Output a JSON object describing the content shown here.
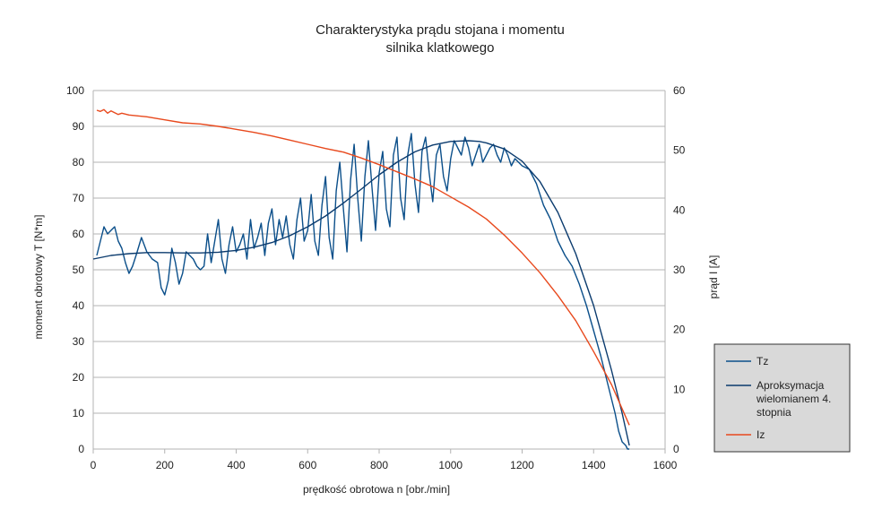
{
  "chart_data": {
    "type": "line",
    "title": "Charakterystyka prądu stojana i momentu",
    "subtitle": "silnika klatkowego",
    "xlabel": "prędkość obrotowa n [obr./min]",
    "ylabel": "moment obrotowy T [N*m]",
    "y2label": "prąd I [A]",
    "xlim": [
      0,
      1600
    ],
    "ylim": [
      0,
      100
    ],
    "y2lim": [
      0,
      60
    ],
    "x_ticks": [
      0,
      200,
      400,
      600,
      800,
      1000,
      1200,
      1400,
      1600
    ],
    "y_ticks": [
      0,
      10,
      20,
      30,
      40,
      50,
      60,
      70,
      80,
      90,
      100
    ],
    "y2_ticks": [
      0,
      10,
      20,
      30,
      40,
      50,
      60
    ],
    "grid": true,
    "legend_position": "right",
    "series": [
      {
        "name": "Tz",
        "axis": "left",
        "color": "#0b4f8a",
        "x": [
          10,
          20,
          30,
          40,
          50,
          60,
          70,
          80,
          90,
          100,
          110,
          120,
          135,
          150,
          165,
          180,
          190,
          200,
          210,
          220,
          230,
          240,
          250,
          260,
          270,
          280,
          290,
          300,
          310,
          320,
          330,
          340,
          350,
          360,
          370,
          380,
          390,
          400,
          410,
          420,
          430,
          440,
          450,
          460,
          470,
          480,
          490,
          500,
          510,
          520,
          530,
          540,
          550,
          560,
          570,
          580,
          590,
          600,
          610,
          620,
          630,
          640,
          650,
          660,
          670,
          680,
          690,
          700,
          710,
          720,
          730,
          740,
          750,
          760,
          770,
          780,
          790,
          800,
          810,
          820,
          830,
          840,
          850,
          860,
          870,
          880,
          890,
          900,
          910,
          920,
          930,
          940,
          950,
          960,
          970,
          980,
          990,
          1000,
          1010,
          1020,
          1030,
          1040,
          1050,
          1060,
          1070,
          1080,
          1090,
          1100,
          1110,
          1120,
          1130,
          1140,
          1150,
          1160,
          1170,
          1180,
          1190,
          1200,
          1220,
          1240,
          1260,
          1280,
          1300,
          1320,
          1340,
          1360,
          1380,
          1400,
          1420,
          1440,
          1460,
          1470,
          1480,
          1490,
          1495,
          1500
        ],
        "y": [
          54,
          58,
          62,
          60,
          61,
          62,
          58,
          56,
          52,
          49,
          51,
          54,
          59,
          55,
          53,
          52,
          45,
          43,
          47,
          56,
          52,
          46,
          49,
          55,
          54,
          53,
          51,
          50,
          51,
          60,
          52,
          58,
          64,
          53,
          49,
          57,
          62,
          55,
          57,
          60,
          53,
          64,
          56,
          59,
          63,
          54,
          63,
          67,
          57,
          64,
          59,
          65,
          57,
          53,
          64,
          70,
          58,
          61,
          71,
          58,
          54,
          68,
          76,
          59,
          53,
          72,
          80,
          67,
          55,
          75,
          85,
          70,
          58,
          76,
          86,
          73,
          61,
          77,
          83,
          67,
          62,
          82,
          87,
          70,
          64,
          82,
          88,
          74,
          66,
          83,
          87,
          77,
          69,
          82,
          85,
          76,
          72,
          81,
          86,
          84,
          82,
          87,
          84,
          79,
          82,
          85,
          80,
          82,
          84,
          85,
          82,
          80,
          84,
          82,
          79,
          81,
          80,
          79,
          78,
          74,
          68,
          64,
          58,
          54,
          51,
          46,
          40,
          33,
          26,
          18,
          10,
          5,
          2,
          1,
          0,
          0
        ]
      },
      {
        "name": "Aproksymacja wielomianem 4. stopnia",
        "axis": "left",
        "color": "#0b3b6e",
        "x": [
          0,
          50,
          100,
          150,
          200,
          250,
          300,
          350,
          400,
          450,
          500,
          550,
          600,
          650,
          700,
          750,
          800,
          850,
          900,
          950,
          1000,
          1050,
          1080,
          1100,
          1150,
          1200,
          1250,
          1300,
          1350,
          1400,
          1450,
          1480,
          1500
        ],
        "y": [
          53,
          54,
          54.5,
          54.8,
          54.8,
          54.7,
          54.7,
          54.9,
          55.4,
          56.3,
          57.6,
          59.5,
          62,
          65,
          68.6,
          72.5,
          76.5,
          80,
          82.9,
          84.8,
          85.8,
          86,
          85.8,
          85.4,
          83.7,
          80.3,
          74.6,
          66,
          54.5,
          40,
          22,
          10,
          1
        ]
      },
      {
        "name": "Iz",
        "axis": "right",
        "color": "#e8491d",
        "x": [
          10,
          20,
          30,
          40,
          50,
          60,
          70,
          80,
          100,
          150,
          200,
          250,
          300,
          350,
          400,
          450,
          500,
          550,
          600,
          650,
          700,
          750,
          800,
          850,
          900,
          950,
          1000,
          1050,
          1100,
          1150,
          1200,
          1250,
          1300,
          1350,
          1400,
          1450,
          1500
        ],
        "y": [
          56.7,
          56.5,
          56.8,
          56.2,
          56.6,
          56.3,
          56,
          56.2,
          55.9,
          55.6,
          55.1,
          54.6,
          54.4,
          54,
          53.5,
          53,
          52.4,
          51.7,
          51,
          50.3,
          49.7,
          48.7,
          47.6,
          46.4,
          45.2,
          43.9,
          42.2,
          40.5,
          38.5,
          35.8,
          32.8,
          29.5,
          25.7,
          21.5,
          16.3,
          10.8,
          4
        ]
      }
    ]
  }
}
